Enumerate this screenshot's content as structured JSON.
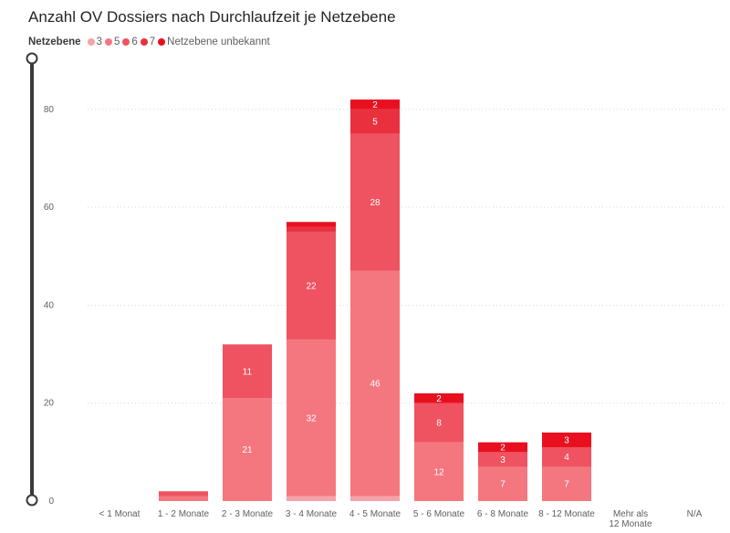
{
  "chart_data": {
    "type": "bar",
    "stacked": true,
    "title": "Anzahl OV Dossiers nach Durchlaufzeit je Netzebene",
    "legend_title": "Netzebene",
    "legend_position": "top-left",
    "categories": [
      "< 1 Monat",
      "1 - 2 Monate",
      "2 - 3 Monate",
      "3 - 4 Monate",
      "4 - 5 Monate",
      "5 - 6 Monate",
      "6 - 8 Monate",
      "8 - 12 Monate",
      "Mehr als 12 Monate",
      "N/A"
    ],
    "series": [
      {
        "name": "3",
        "color": "#F4A3A8",
        "values": [
          0,
          0,
          0,
          1,
          1,
          0,
          0,
          0,
          0,
          0
        ]
      },
      {
        "name": "5",
        "color": "#F4777F",
        "values": [
          0,
          1,
          21,
          32,
          46,
          12,
          7,
          7,
          0,
          0
        ]
      },
      {
        "name": "6",
        "color": "#EF5260",
        "values": [
          0,
          1,
          11,
          22,
          28,
          8,
          3,
          4,
          0,
          0
        ]
      },
      {
        "name": "7",
        "color": "#E8303F",
        "values": [
          0,
          0,
          0,
          1,
          5,
          0,
          0,
          0,
          0,
          0
        ]
      },
      {
        "name": "Netzebene unbekannt",
        "color": "#E8101F",
        "values": [
          0,
          0,
          0,
          1,
          2,
          2,
          2,
          3,
          0,
          0
        ]
      }
    ],
    "data_labels": [
      {
        "series": 1,
        "category": 2,
        "text": "21"
      },
      {
        "series": 2,
        "category": 2,
        "text": "11"
      },
      {
        "series": 1,
        "category": 3,
        "text": "32"
      },
      {
        "series": 2,
        "category": 3,
        "text": "22"
      },
      {
        "series": 1,
        "category": 4,
        "text": "46"
      },
      {
        "series": 2,
        "category": 4,
        "text": "28"
      },
      {
        "series": 3,
        "category": 4,
        "text": "5"
      },
      {
        "series": 4,
        "category": 4,
        "text": "2"
      },
      {
        "series": 1,
        "category": 5,
        "text": "12"
      },
      {
        "series": 2,
        "category": 5,
        "text": "8"
      },
      {
        "series": 4,
        "category": 5,
        "text": "2"
      },
      {
        "series": 1,
        "category": 6,
        "text": "7"
      },
      {
        "series": 2,
        "category": 6,
        "text": "3"
      },
      {
        "series": 4,
        "category": 6,
        "text": "2"
      },
      {
        "series": 1,
        "category": 7,
        "text": "7"
      },
      {
        "series": 2,
        "category": 7,
        "text": "4"
      },
      {
        "series": 4,
        "category": 7,
        "text": "3"
      }
    ],
    "xlabel": "",
    "ylabel": "",
    "ylim": [
      0,
      85
    ],
    "yticks": [
      0,
      20,
      40,
      60,
      80
    ],
    "grid": true
  }
}
